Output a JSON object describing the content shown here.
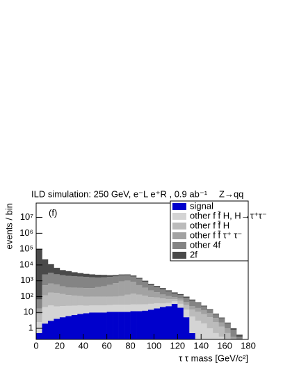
{
  "chart_data": {
    "type": "stacked-histogram",
    "title": "ILD simulation: 250 GeV, e⁻L e⁺R , 0.9 ab⁻¹",
    "subtitle": "Z→qq",
    "annotation": "(f)",
    "x_label": "τ τ mass [GeV/c²]",
    "y_label": "events / bin",
    "log_y": true,
    "legend": "top-right",
    "bins": [
      0,
      5,
      10,
      15,
      20,
      25,
      30,
      35,
      40,
      45,
      50,
      55,
      60,
      65,
      70,
      75,
      80,
      85,
      90,
      95,
      100,
      105,
      110,
      115,
      120,
      125,
      130,
      135,
      140,
      145,
      150,
      155,
      160,
      165,
      170,
      175,
      180
    ],
    "series": [
      {
        "name": "signal",
        "color": "#0000cc",
        "values": [
          0.5,
          2,
          3,
          4,
          5,
          6,
          7,
          8,
          9,
          10,
          10,
          10,
          11,
          11,
          11,
          11,
          12,
          12,
          13,
          15,
          18,
          22,
          25,
          35,
          20,
          5,
          0.5,
          0,
          0,
          0,
          0,
          0,
          0,
          0,
          0,
          0
        ]
      },
      {
        "name": "other f f̄ H, H→τ⁺τ⁻",
        "color": "#d4d4d4",
        "values": [
          2,
          20,
          25,
          20,
          20,
          20,
          20,
          20,
          18,
          18,
          18,
          18,
          18,
          20,
          20,
          20,
          20,
          20,
          20,
          20,
          20,
          15,
          15,
          15,
          15,
          10,
          5,
          3,
          2,
          1,
          0.5,
          0.3,
          0,
          0,
          0,
          0
        ]
      },
      {
        "name": "other f f̄ H",
        "color": "#bbbbbb",
        "values": [
          5,
          100,
          150,
          150,
          120,
          100,
          90,
          80,
          70,
          70,
          70,
          70,
          70,
          70,
          80,
          100,
          120,
          100,
          80,
          60,
          50,
          40,
          30,
          20,
          20,
          15,
          10,
          8,
          6,
          4,
          2,
          1,
          0.5,
          0,
          0,
          0
        ]
      },
      {
        "name": "other f f̄ τ⁺ τ⁻",
        "color": "#a2a2a2",
        "values": [
          10,
          400,
          500,
          400,
          300,
          250,
          250,
          250,
          250,
          250,
          300,
          350,
          450,
          600,
          800,
          900,
          700,
          400,
          250,
          150,
          100,
          60,
          40,
          25,
          20,
          15,
          10,
          8,
          6,
          4,
          2,
          1,
          0.5,
          0.3,
          0,
          0
        ]
      },
      {
        "name": "other 4f",
        "color": "#848484",
        "values": [
          50,
          2000,
          2500,
          2000,
          1800,
          1700,
          1600,
          1500,
          1400,
          1300,
          1200,
          1200,
          1200,
          1200,
          1300,
          1200,
          1000,
          800,
          500,
          300,
          200,
          150,
          100,
          60,
          50,
          40,
          30,
          20,
          10,
          5,
          3,
          2,
          1,
          0.5,
          0.3,
          0
        ]
      },
      {
        "name": "2f",
        "color": "#4a4a4a",
        "values": [
          100000,
          20000,
          8000,
          4000,
          2500,
          2000,
          1500,
          1200,
          1000,
          900,
          800,
          700,
          500,
          400,
          300,
          300,
          300,
          200,
          150,
          100,
          80,
          60,
          40,
          30,
          20,
          15,
          10,
          5,
          3,
          2,
          1,
          0.5,
          0.3,
          0.2,
          0.1,
          0
        ]
      }
    ],
    "xlim": [
      0,
      180
    ],
    "xticks": [
      0,
      20,
      40,
      60,
      80,
      100,
      120,
      140,
      160,
      180
    ],
    "ylim": [
      0.2,
      80000000
    ],
    "yticks": [
      1,
      10,
      {
        "value": 100,
        "label": "10²"
      },
      {
        "value": 1000,
        "label": "10³"
      },
      {
        "value": 10000,
        "label": "10⁴"
      },
      {
        "value": 100000,
        "label": "10⁵"
      },
      {
        "value": 1000000,
        "label": "10⁶"
      },
      {
        "value": 10000000,
        "label": "10⁷"
      }
    ]
  }
}
